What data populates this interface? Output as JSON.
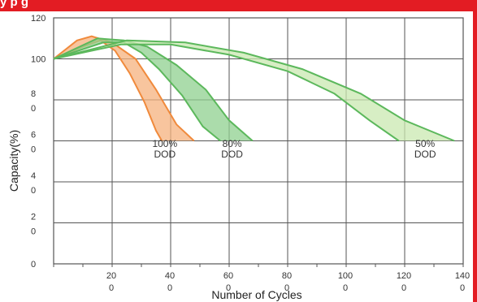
{
  "banner": {
    "text": "y                               p                  g",
    "color": "#e31c23"
  },
  "chart_data": {
    "type": "area",
    "title": "",
    "xlabel": "Number of Cycles",
    "ylabel": "Capacity(%)",
    "xlim": [
      0,
      1400
    ],
    "ylim": [
      0,
      120
    ],
    "grid": true,
    "x_ticks": [
      {
        "value": 200,
        "lines": [
          "20",
          "0"
        ]
      },
      {
        "value": 400,
        "lines": [
          "40",
          "0"
        ]
      },
      {
        "value": 600,
        "lines": [
          "60",
          "0"
        ]
      },
      {
        "value": 800,
        "lines": [
          "80",
          "0"
        ]
      },
      {
        "value": 1000,
        "lines": [
          "100",
          "0"
        ]
      },
      {
        "value": 1200,
        "lines": [
          "120",
          "0"
        ]
      },
      {
        "value": 1400,
        "lines": [
          "140",
          "0"
        ]
      }
    ],
    "y_ticks": [
      {
        "value": 0,
        "lines": [
          "0"
        ]
      },
      {
        "value": 20,
        "lines": [
          "2",
          "0"
        ]
      },
      {
        "value": 40,
        "lines": [
          "4",
          "0"
        ]
      },
      {
        "value": 60,
        "lines": [
          "6",
          "0"
        ]
      },
      {
        "value": 80,
        "lines": [
          "8",
          "0"
        ]
      },
      {
        "value": 100,
        "lines": [
          "100"
        ]
      },
      {
        "value": 120,
        "lines": [
          "120"
        ]
      }
    ],
    "series": [
      {
        "name": "100% DOD",
        "color": "#f08a3c",
        "fill": "#f6b27e",
        "label_lines": [
          "100%",
          "DOD"
        ],
        "label_at": [
          380,
          57
        ],
        "upper": [
          [
            0,
            100
          ],
          [
            80,
            109
          ],
          [
            130,
            111
          ],
          [
            200,
            108
          ],
          [
            280,
            100
          ],
          [
            350,
            85
          ],
          [
            420,
            68
          ],
          [
            480,
            60
          ]
        ],
        "lower": [
          [
            0,
            100
          ],
          [
            100,
            106
          ],
          [
            160,
            109
          ],
          [
            210,
            104
          ],
          [
            260,
            93
          ],
          [
            310,
            79
          ],
          [
            350,
            65
          ],
          [
            370,
            60
          ]
        ]
      },
      {
        "name": "80% DOD",
        "color": "#5cb85c",
        "fill": "#8fd08f",
        "label_lines": [
          "80%",
          "DOD"
        ],
        "label_at": [
          610,
          57
        ],
        "upper": [
          [
            0,
            100
          ],
          [
            150,
            110
          ],
          [
            240,
            109
          ],
          [
            320,
            106
          ],
          [
            420,
            97
          ],
          [
            520,
            85
          ],
          [
            600,
            70
          ],
          [
            680,
            60
          ]
        ],
        "lower": [
          [
            0,
            100
          ],
          [
            170,
            108
          ],
          [
            240,
            108
          ],
          [
            300,
            103
          ],
          [
            360,
            95
          ],
          [
            440,
            82
          ],
          [
            510,
            67
          ],
          [
            570,
            60
          ]
        ]
      },
      {
        "name": "50% DOD",
        "color": "#5cb85c",
        "fill": "#c9e8b0",
        "label_lines": [
          "50%",
          "DOD"
        ],
        "label_at": [
          1270,
          57
        ],
        "upper": [
          [
            0,
            100
          ],
          [
            250,
            109
          ],
          [
            450,
            108
          ],
          [
            650,
            103
          ],
          [
            850,
            95
          ],
          [
            1050,
            83
          ],
          [
            1200,
            70
          ],
          [
            1370,
            60
          ]
        ],
        "lower": [
          [
            0,
            100
          ],
          [
            230,
            107
          ],
          [
            400,
            107
          ],
          [
            600,
            102
          ],
          [
            800,
            94
          ],
          [
            960,
            83
          ],
          [
            1080,
            70
          ],
          [
            1180,
            60
          ]
        ]
      }
    ]
  }
}
